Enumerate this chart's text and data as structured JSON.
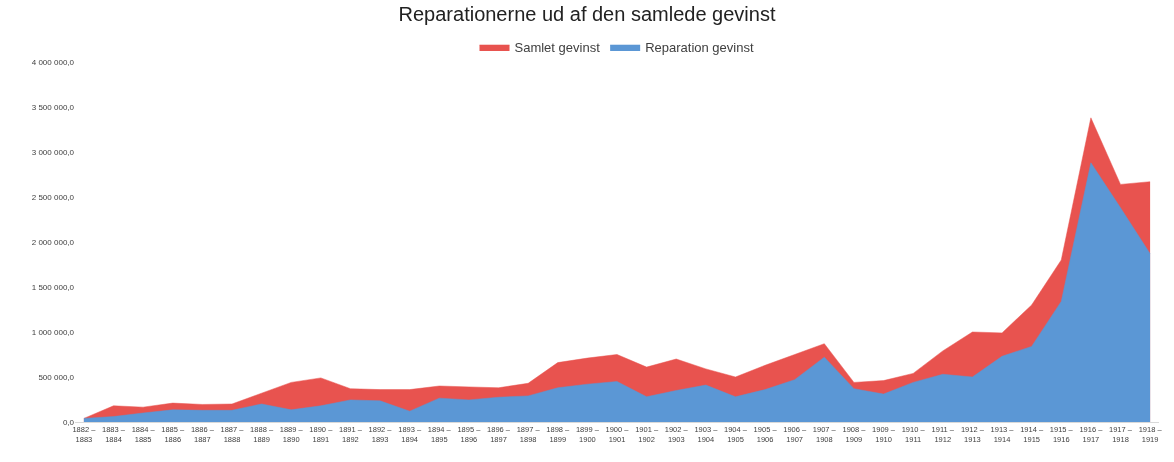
{
  "chart_data": {
    "type": "area",
    "title": "Reparationerne ud af den samlede gevinst",
    "categories": [
      "1882 – 1883",
      "1883 – 1884",
      "1884 – 1885",
      "1885 – 1886",
      "1886 – 1887",
      "1887 – 1888",
      "1888 – 1889",
      "1889 – 1890",
      "1890 – 1891",
      "1891 – 1892",
      "1892 – 1893",
      "1893 – 1894",
      "1894 – 1895",
      "1895 – 1896",
      "1896 – 1897",
      "1897 – 1898",
      "1898 – 1899",
      "1899 – 1900",
      "1900 – 1901",
      "1901 – 1902",
      "1902 – 1903",
      "1903 – 1904",
      "1904 – 1905",
      "1905 – 1906",
      "1906 – 1907",
      "1907 – 1908",
      "1908 – 1909",
      "1909 – 1910",
      "1910 – 1911",
      "1911 – 1912",
      "1912 – 1913",
      "1913 – 1914",
      "1914 – 1915",
      "1915 – 1916",
      "1916 – 1917",
      "1917 – 1918",
      "1918 – 1919"
    ],
    "series": [
      {
        "name": "Samlet gevinst",
        "color": "#e8534f",
        "values": [
          40000,
          180000,
          165000,
          210000,
          195000,
          200000,
          320000,
          440000,
          490000,
          370000,
          360000,
          360000,
          400000,
          390000,
          380000,
          430000,
          660000,
          710000,
          750000,
          610000,
          700000,
          590000,
          500000,
          630000,
          750000,
          870000,
          440000,
          460000,
          540000,
          790000,
          1000000,
          990000,
          1300000,
          1800000,
          3380000,
          2640000,
          2670000
        ]
      },
      {
        "name": "Reparation gevinst",
        "color": "#5b97d5",
        "values": [
          40000,
          60000,
          100000,
          135000,
          130000,
          130000,
          200000,
          135000,
          180000,
          245000,
          235000,
          120000,
          265000,
          245000,
          275000,
          290000,
          380000,
          420000,
          450000,
          280000,
          350000,
          410000,
          280000,
          360000,
          470000,
          720000,
          370000,
          310000,
          440000,
          530000,
          500000,
          730000,
          840000,
          1340000,
          2880000,
          2380000,
          1870000
        ]
      }
    ],
    "ylim": [
      0,
      4000000
    ],
    "yticks": [
      {
        "value": 0,
        "label": "0,0"
      },
      {
        "value": 500000,
        "label": "500 000,0"
      },
      {
        "value": 1000000,
        "label": "1 000 000,0"
      },
      {
        "value": 1500000,
        "label": "1 500 000,0"
      },
      {
        "value": 2000000,
        "label": "2 000 000,0"
      },
      {
        "value": 2500000,
        "label": "2 500 000,0"
      },
      {
        "value": 3000000,
        "label": "3 000 000,0"
      },
      {
        "value": 3500000,
        "label": "3 500 000,0"
      },
      {
        "value": 4000000,
        "label": "4 000 000,0"
      }
    ],
    "grid": false,
    "legend": "top"
  }
}
